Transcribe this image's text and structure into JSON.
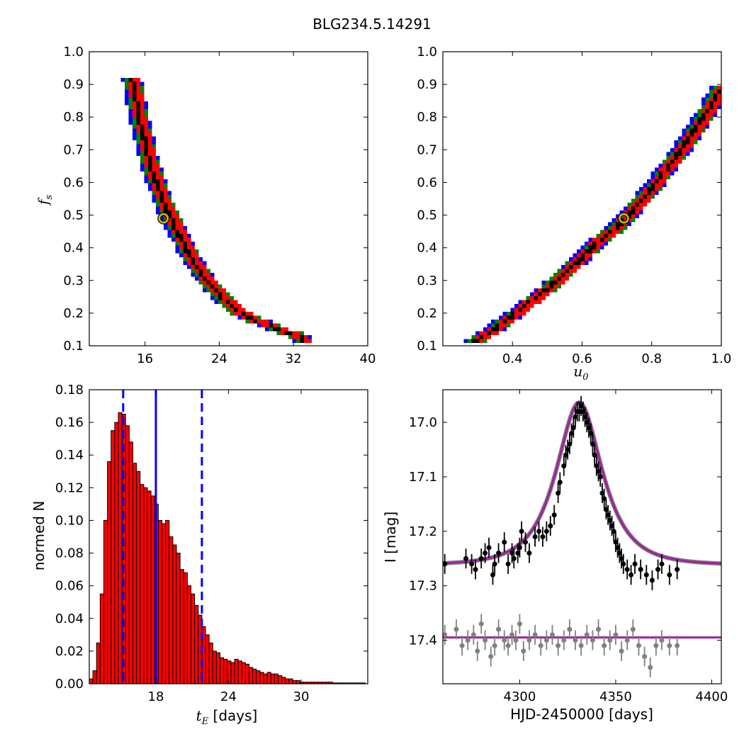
{
  "figure": {
    "title": "BLG234.5.14291"
  },
  "chart_data": [
    {
      "type": "heatmap",
      "panel": "top-left",
      "xlabel": "",
      "ylabel_main": "f",
      "ylabel_sub": "s",
      "xlim": [
        10,
        40
      ],
      "ylim": [
        0.1,
        1.0
      ],
      "xticks": [
        "16",
        "24",
        "32",
        "40"
      ],
      "yticks": [
        "0.1",
        "0.2",
        "0.3",
        "0.4",
        "0.5",
        "0.6",
        "0.7",
        "0.8",
        "0.9",
        "1.0"
      ],
      "levels": [
        "blue",
        "green",
        "red",
        "black"
      ],
      "level_colors": [
        "#0000ff",
        "#008000",
        "#ff0000",
        "#000000"
      ],
      "ridge": {
        "x": [
          14.5,
          15.0,
          15.5,
          16.5,
          18.0,
          19.5,
          21.0,
          22.5,
          24.0,
          26.0,
          28.0,
          30.0,
          32.0,
          33.0
        ],
        "y": [
          0.93,
          0.85,
          0.78,
          0.66,
          0.54,
          0.45,
          0.37,
          0.31,
          0.26,
          0.21,
          0.18,
          0.16,
          0.14,
          0.125
        ]
      },
      "best_fit": {
        "x": 18.0,
        "y": 0.49
      }
    },
    {
      "type": "heatmap",
      "panel": "top-right",
      "xlabel_main": "u",
      "xlabel_sub": "0",
      "ylabel": "",
      "xlim": [
        0.2,
        1.0
      ],
      "ylim": [
        0.1,
        1.0
      ],
      "xticks": [
        "0.4",
        "0.6",
        "0.8",
        "1.0"
      ],
      "yticks": [
        "0.1",
        "0.2",
        "0.3",
        "0.4",
        "0.5",
        "0.6",
        "0.7",
        "0.8",
        "0.9",
        "1.0"
      ],
      "levels": [
        "blue",
        "green",
        "red",
        "black"
      ],
      "level_colors": [
        "#0000ff",
        "#008000",
        "#ff0000",
        "#000000"
      ],
      "ridge": {
        "x": [
          0.29,
          0.35,
          0.4,
          0.45,
          0.5,
          0.55,
          0.6,
          0.65,
          0.7,
          0.75,
          0.8,
          0.85,
          0.9,
          0.95,
          1.0
        ],
        "y": [
          0.12,
          0.16,
          0.2,
          0.24,
          0.28,
          0.33,
          0.38,
          0.43,
          0.47,
          0.53,
          0.59,
          0.66,
          0.73,
          0.81,
          0.9
        ]
      },
      "best_fit": {
        "x": 0.72,
        "y": 0.49
      }
    },
    {
      "type": "bar",
      "panel": "bottom-left",
      "xlabel_main": "t",
      "xlabel_sub": "E",
      "xlabel_rest": " [days]",
      "ylabel": "normed N",
      "xlim": [
        12.5,
        35.5
      ],
      "ylim": [
        0.0,
        0.18
      ],
      "xticks": [
        "18",
        "24",
        "30"
      ],
      "yticks": [
        "0.00",
        "0.02",
        "0.04",
        "0.06",
        "0.08",
        "0.10",
        "0.12",
        "0.14",
        "0.16",
        "0.18"
      ],
      "bin_start": 12.5,
      "bin_width": 0.3,
      "values": [
        0.003,
        0.008,
        0.025,
        0.055,
        0.1,
        0.136,
        0.155,
        0.16,
        0.166,
        0.165,
        0.158,
        0.148,
        0.135,
        0.13,
        0.122,
        0.12,
        0.118,
        0.115,
        0.11,
        0.1,
        0.098,
        0.1,
        0.09,
        0.085,
        0.08,
        0.07,
        0.068,
        0.06,
        0.055,
        0.048,
        0.042,
        0.035,
        0.03,
        0.025,
        0.02,
        0.019,
        0.016,
        0.015,
        0.014,
        0.013,
        0.015,
        0.014,
        0.013,
        0.012,
        0.01,
        0.009,
        0.008,
        0.007,
        0.006,
        0.007,
        0.006,
        0.006,
        0.005,
        0.004,
        0.003,
        0.003,
        0.002,
        0.002,
        0.001,
        0.001,
        0.001,
        0.001,
        0.001,
        0.001,
        0.001,
        0.001,
        0.001,
        0.0005,
        0.0005,
        0.0005,
        0.0005,
        0.0005,
        0.0005,
        0.0005,
        0.0005,
        0.0005
      ],
      "median": 18.0,
      "interval": [
        15.3,
        21.8
      ],
      "bar_color": "#ff0000",
      "line_color": "#0000ff"
    },
    {
      "type": "scatter",
      "panel": "bottom-right",
      "xlabel": "HJD-2450000 [days]",
      "ylabel": "I [mag]",
      "xlim": [
        4260,
        4405
      ],
      "ylim": [
        17.48,
        16.94
      ],
      "xticks": [
        "4300",
        "4350",
        "4400"
      ],
      "yticks": [
        "17.0",
        "17.1",
        "17.2",
        "17.3",
        "17.4"
      ],
      "model": {
        "t0": 4331,
        "tE": 18,
        "u0": 0.72,
        "fs": 0.49,
        "baseline": 17.262,
        "color": "#a020a0"
      },
      "residual_baseline": 17.395,
      "series": [
        {
          "name": "",
          "color": "#000000",
          "x": [
            4261,
            4272,
            4275,
            4277,
            4280,
            4282,
            4284,
            4286,
            4287,
            4289,
            4292,
            4294,
            4296,
            4297,
            4299,
            4300,
            4301,
            4303,
            4305,
            4308,
            4310,
            4312,
            4314,
            4316,
            4318,
            4320,
            4321,
            4323,
            4324,
            4325,
            4326,
            4327,
            4328,
            4329,
            4330,
            4331,
            4332,
            4333,
            4334,
            4335,
            4336,
            4337,
            4338,
            4339,
            4340,
            4341,
            4342,
            4343,
            4344,
            4345,
            4346,
            4347,
            4348,
            4349,
            4350,
            4351,
            4352,
            4353,
            4354,
            4356,
            4358,
            4360,
            4363,
            4366,
            4369,
            4372,
            4374,
            4378,
            4382
          ],
          "y": [
            17.26,
            17.25,
            17.26,
            17.27,
            17.25,
            17.24,
            17.23,
            17.28,
            17.26,
            17.24,
            17.22,
            17.26,
            17.24,
            17.25,
            17.24,
            17.23,
            17.2,
            17.22,
            17.24,
            17.21,
            17.2,
            17.21,
            17.2,
            17.19,
            17.17,
            17.13,
            17.11,
            17.08,
            17.06,
            17.05,
            17.04,
            17.02,
            17.01,
            16.99,
            16.98,
            16.98,
            16.97,
            16.98,
            16.99,
            17.0,
            17.01,
            17.02,
            17.04,
            17.06,
            17.08,
            17.09,
            17.1,
            17.13,
            17.14,
            17.16,
            17.17,
            17.18,
            17.19,
            17.2,
            17.22,
            17.23,
            17.24,
            17.25,
            17.26,
            17.27,
            17.28,
            17.26,
            17.27,
            17.28,
            17.29,
            17.27,
            17.26,
            17.28,
            17.27
          ]
        },
        {
          "name": "",
          "color": "#808080",
          "x": [
            4261,
            4267,
            4270,
            4273,
            4276,
            4278,
            4280,
            4282,
            4285,
            4287,
            4289,
            4292,
            4294,
            4296,
            4298,
            4300,
            4302,
            4305,
            4308,
            4311,
            4314,
            4317,
            4320,
            4323,
            4326,
            4329,
            4332,
            4335,
            4338,
            4341,
            4344,
            4347,
            4350,
            4353,
            4356,
            4359,
            4362,
            4365,
            4368,
            4371,
            4374,
            4378,
            4382
          ],
          "y": [
            17.39,
            17.38,
            17.41,
            17.4,
            17.39,
            17.42,
            17.37,
            17.4,
            17.43,
            17.41,
            17.38,
            17.4,
            17.41,
            17.39,
            17.4,
            17.37,
            17.42,
            17.4,
            17.39,
            17.41,
            17.4,
            17.39,
            17.41,
            17.4,
            17.38,
            17.4,
            17.41,
            17.39,
            17.4,
            17.38,
            17.41,
            17.4,
            17.39,
            17.42,
            17.4,
            17.38,
            17.41,
            17.43,
            17.45,
            17.41,
            17.4,
            17.41,
            17.41
          ]
        }
      ]
    }
  ]
}
